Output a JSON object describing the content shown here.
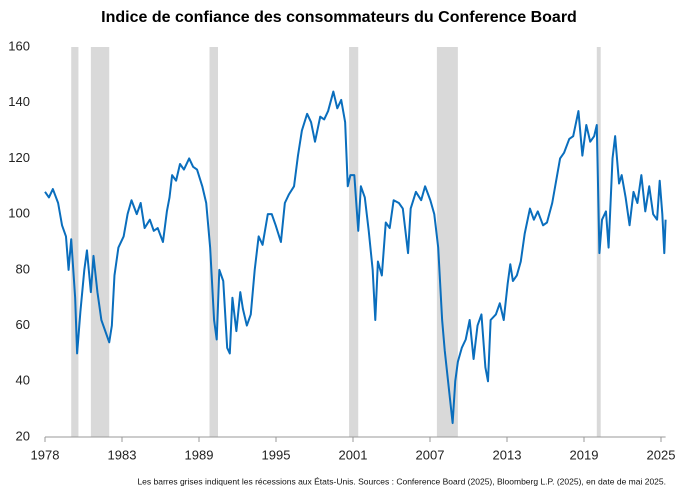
{
  "chart_data": {
    "type": "line",
    "title": "Indice de confiance des consommateurs du Conference Board",
    "note": "Les barres grises indiquent les récessions aux États-Unis. Sources : Conference Board (2025), Bloomberg L.P. (2025), en date de mai 2025.",
    "xlim": [
      1978,
      2025.35
    ],
    "ylim": [
      20,
      160
    ],
    "yticks": [
      20,
      40,
      60,
      80,
      100,
      120,
      140,
      160
    ],
    "xticks": [
      {
        "value": 1978,
        "label": "1978"
      },
      {
        "value": 1983.875,
        "label": "1983"
      },
      {
        "value": 1989.75,
        "label": "1989"
      },
      {
        "value": 1995.625,
        "label": "1995"
      },
      {
        "value": 2001.5,
        "label": "2001"
      },
      {
        "value": 2007.375,
        "label": "2007"
      },
      {
        "value": 2013.25,
        "label": "2013"
      },
      {
        "value": 2019.125,
        "label": "2019"
      },
      {
        "value": 2025,
        "label": "2025"
      }
    ],
    "recessions": [
      [
        1980.0,
        1980.55
      ],
      [
        1981.5,
        1982.9
      ],
      [
        1990.55,
        1991.2
      ],
      [
        2001.2,
        2001.9
      ],
      [
        2007.9,
        2009.5
      ],
      [
        2020.1,
        2020.4
      ]
    ],
    "recession_color": "#d9d9d9",
    "grid": false,
    "x": [
      1978.0,
      1978.3,
      1978.6,
      1979.0,
      1979.3,
      1979.6,
      1979.8,
      1980.0,
      1980.3,
      1980.45,
      1980.7,
      1981.0,
      1981.2,
      1981.5,
      1981.7,
      1982.0,
      1982.3,
      1982.6,
      1982.9,
      1983.1,
      1983.3,
      1983.6,
      1984.0,
      1984.3,
      1984.6,
      1985.0,
      1985.3,
      1985.6,
      1986.0,
      1986.3,
      1986.6,
      1987.0,
      1987.3,
      1987.5,
      1987.7,
      1988.0,
      1988.3,
      1988.6,
      1989.0,
      1989.3,
      1989.6,
      1990.0,
      1990.3,
      1990.6,
      1990.9,
      1991.1,
      1991.3,
      1991.6,
      1991.9,
      1992.1,
      1992.3,
      1992.6,
      1992.9,
      1993.1,
      1993.4,
      1993.7,
      1994.0,
      1994.3,
      1994.6,
      1995.0,
      1995.3,
      1995.6,
      1996.0,
      1996.3,
      1996.6,
      1997.0,
      1997.3,
      1997.6,
      1998.0,
      1998.3,
      1998.6,
      1999.0,
      1999.3,
      1999.6,
      2000.0,
      2000.3,
      2000.6,
      2000.9,
      2001.1,
      2001.3,
      2001.6,
      2001.9,
      2002.1,
      2002.4,
      2002.7,
      2003.0,
      2003.2,
      2003.4,
      2003.7,
      2004.0,
      2004.3,
      2004.6,
      2005.0,
      2005.3,
      2005.7,
      2005.9,
      2006.3,
      2006.7,
      2007.0,
      2007.4,
      2007.7,
      2008.0,
      2008.3,
      2008.5,
      2008.8,
      2009.1,
      2009.3,
      2009.5,
      2009.8,
      2010.1,
      2010.4,
      2010.7,
      2011.0,
      2011.3,
      2011.6,
      2011.8,
      2012.0,
      2012.4,
      2012.7,
      2013.0,
      2013.3,
      2013.5,
      2013.7,
      2014.0,
      2014.3,
      2014.6,
      2015.0,
      2015.3,
      2015.6,
      2016.0,
      2016.3,
      2016.7,
      2017.0,
      2017.3,
      2017.6,
      2018.0,
      2018.3,
      2018.7,
      2019.0,
      2019.3,
      2019.6,
      2019.9,
      2020.1,
      2020.3,
      2020.5,
      2020.8,
      2021.0,
      2021.3,
      2021.5,
      2021.8,
      2022.0,
      2022.3,
      2022.6,
      2022.9,
      2023.2,
      2023.5,
      2023.8,
      2024.1,
      2024.4,
      2024.7,
      2024.9,
      2025.1,
      2025.25,
      2025.35
    ],
    "series": [
      {
        "color": "#0a6ebd",
        "values": [
          108,
          106,
          109,
          104,
          96,
          92,
          80,
          91,
          70,
          50,
          65,
          80,
          87,
          72,
          85,
          72,
          62,
          58,
          54,
          60,
          78,
          88,
          92,
          100,
          105,
          100,
          104,
          95,
          98,
          94,
          95,
          90,
          101,
          106,
          114,
          112,
          118,
          116,
          120,
          117,
          116,
          110,
          104,
          88,
          62,
          55,
          80,
          76,
          52,
          50,
          70,
          58,
          72,
          66,
          60,
          64,
          80,
          92,
          89,
          100,
          100,
          96,
          90,
          104,
          107,
          110,
          121,
          130,
          136,
          133,
          126,
          135,
          134,
          137,
          144,
          138,
          141,
          133,
          110,
          114,
          114,
          94,
          110,
          106,
          94,
          80,
          62,
          83,
          78,
          97,
          95,
          105,
          104,
          102,
          86,
          102,
          108,
          105,
          110,
          105,
          100,
          88,
          62,
          51,
          38,
          25,
          40,
          47,
          52,
          55,
          62,
          48,
          60,
          64,
          45,
          40,
          62,
          64,
          68,
          62,
          75,
          82,
          76,
          78,
          83,
          93,
          102,
          98,
          101,
          96,
          97,
          104,
          112,
          120,
          122,
          127,
          128,
          137,
          121,
          132,
          126,
          128,
          132,
          86,
          98,
          101,
          88,
          120,
          128,
          111,
          114,
          106,
          96,
          108,
          104,
          114,
          101,
          110,
          100,
          98,
          112,
          100,
          86,
          98
        ]
      }
    ]
  }
}
